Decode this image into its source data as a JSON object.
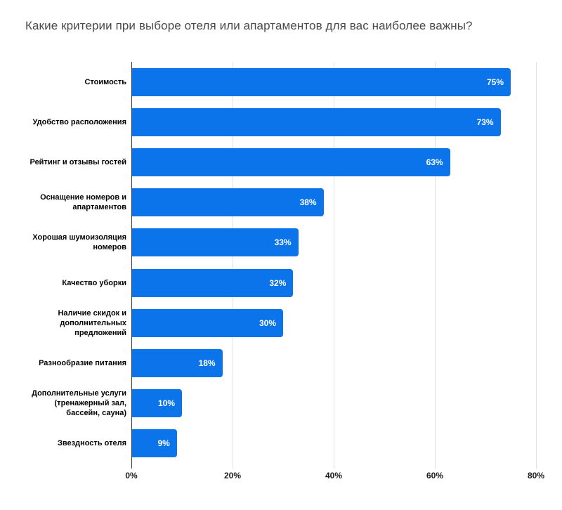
{
  "title": "Какие критерии при выборе отеля или апартаментов для вас наиболее важны?",
  "chart_data": {
    "type": "bar",
    "orientation": "horizontal",
    "title": "Какие критерии при выборе отеля или апартаментов для вас наиболее важны?",
    "categories": [
      "Стоимость",
      "Удобство расположения",
      "Рейтинг и отзывы гостей",
      "Оснащение номеров и апартаментов",
      "Хорошая шумоизоляция номеров",
      "Качество уборки",
      "Наличие скидок и дополнительных предложений",
      "Разнообразие питания",
      "Дополнительные услуги (тренажерный зал, бассейн, сауна)",
      "Звездность отеля"
    ],
    "values": [
      75,
      73,
      63,
      38,
      33,
      32,
      30,
      18,
      10,
      9
    ],
    "value_labels": [
      "75%",
      "73%",
      "63%",
      "38%",
      "33%",
      "32%",
      "30%",
      "18%",
      "10%",
      "9%"
    ],
    "xlabel": "",
    "ylabel": "",
    "xlim": [
      0,
      80
    ],
    "x_tick_values": [
      0,
      20,
      40,
      60,
      80
    ],
    "x_tick_labels": [
      "0%",
      "20%",
      "40%",
      "60%",
      "80%"
    ],
    "grid": true,
    "legend": false
  },
  "colors": {
    "bar": "#0b74eb",
    "bar_value_text": "#ffffff",
    "gridline": "#e0e0e0",
    "axis_line": "#3b3b3b",
    "title_text": "#4a4a4a",
    "category_text": "#000000",
    "tick_text": "#1a1a1a",
    "background": "#ffffff"
  }
}
